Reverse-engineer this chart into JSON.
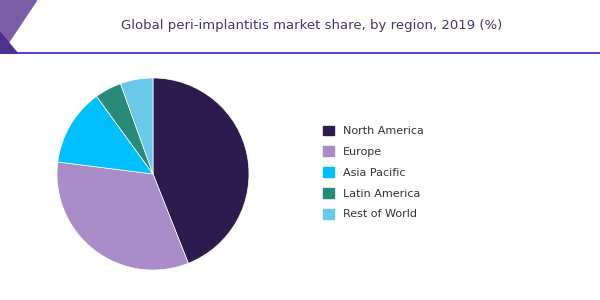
{
  "title": "Global peri-implantitis market share, by region, 2019 (%)",
  "slices": [
    44.0,
    33.0,
    13.0,
    4.5,
    5.5
  ],
  "labels": [
    "North America",
    "Europe",
    "Asia Pacific",
    "Latin America",
    "Rest of World"
  ],
  "colors": [
    "#2d1b4e",
    "#a98cc8",
    "#00bfff",
    "#2a8a7a",
    "#6ac8e8"
  ],
  "startangle": 90,
  "background_color": "#ffffff",
  "title_color": "#4a3070",
  "legend_text_color": "#333333",
  "title_fontsize": 9.5,
  "legend_fontsize": 8,
  "header_line_color": "#6040a0",
  "header_bg_color": "#f0f0f8",
  "triangle_color": "#7b5ea7"
}
